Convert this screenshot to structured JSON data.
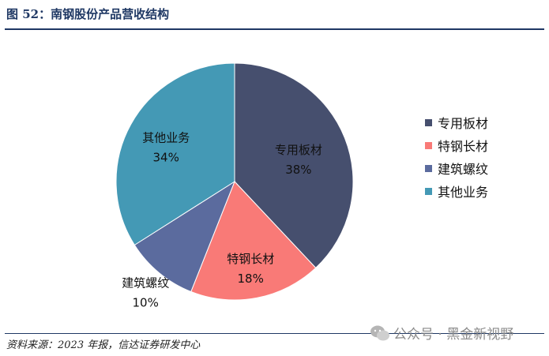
{
  "figure": {
    "title": "图 52：南钢股份产品营收结构",
    "source": "资料来源：2023 年报，信达证券研发中心",
    "watermark": "公众号 · 黑金新视野"
  },
  "chart_data": {
    "type": "pie",
    "title": "",
    "legend_position": "right",
    "slices": [
      {
        "name": "专用板材",
        "value": 38,
        "label": "38%",
        "color": "#464f6e"
      },
      {
        "name": "特钢长材",
        "value": 18,
        "label": "18%",
        "color": "#f97a77"
      },
      {
        "name": "建筑螺纹",
        "value": 10,
        "label": "10%",
        "color": "#5b6b9e"
      },
      {
        "name": "其他业务",
        "value": 34,
        "label": "34%",
        "color": "#4499b5"
      }
    ]
  }
}
